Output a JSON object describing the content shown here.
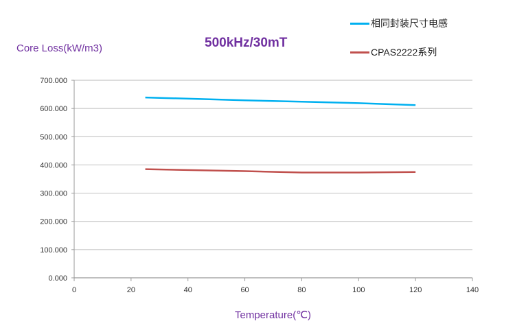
{
  "chart_data": {
    "type": "line",
    "title": "500kHz/30mT",
    "xlabel": "Temperature(℃)",
    "ylabel": "Core Loss(kW/m3)",
    "xlim": [
      0,
      140
    ],
    "ylim": [
      0,
      700
    ],
    "xticks": [
      "0",
      "20",
      "40",
      "60",
      "80",
      "100",
      "120",
      "140"
    ],
    "yticks": [
      "0.000",
      "100.000",
      "200.000",
      "300.000",
      "400.000",
      "500.000",
      "600.000",
      "700.000"
    ],
    "grid": true,
    "legend_position": "top-right",
    "series": [
      {
        "name": "相同封装尺寸电感",
        "color": "#00b0f0",
        "x": [
          25,
          60,
          80,
          100,
          120
        ],
        "y": [
          639,
          629,
          624,
          619,
          612
        ]
      },
      {
        "name": "CPAS2222系列",
        "color": "#c0504d",
        "x": [
          25,
          60,
          80,
          100,
          120
        ],
        "y": [
          385,
          378,
          373,
          373,
          375
        ]
      }
    ]
  }
}
